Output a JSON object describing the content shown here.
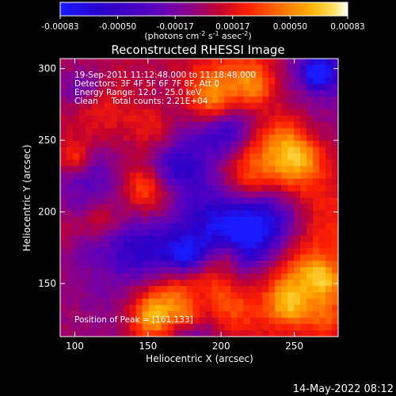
{
  "colorbar": {
    "ticks": [
      "-0.00083",
      "-0.00050",
      "-0.00017",
      "0.00017",
      "0.00050",
      "0.00083"
    ],
    "unit_parts": [
      "(photons cm",
      "-2",
      " s",
      "-1",
      " asec",
      "-2",
      ")"
    ],
    "colors": [
      "#1a1aff",
      "#2a00c8",
      "#5a00c0",
      "#8a008a",
      "#c00030",
      "#ff2000",
      "#ff6a00",
      "#ffb000",
      "#ffe060",
      "#ffffff"
    ]
  },
  "plot": {
    "title": "Reconstructed RHESSI Image",
    "xlabel": "Heliocentric X (arcsec)",
    "ylabel": "Heliocentric Y (arcsec)",
    "x_ticks": [
      "100",
      "150",
      "200",
      "250"
    ],
    "y_ticks": [
      "300",
      "250",
      "200",
      "150"
    ],
    "xlim": [
      90,
      280
    ],
    "ylim": [
      113,
      307
    ]
  },
  "annotations": {
    "time": "19-Sep-2011 11:12:48.000 to 11:18:48.000",
    "detectors": "Detectors: 3F 4F 5F 6F 7F 8F, Att 0",
    "energy": "Energy Range: 12.0 - 25.0 keV",
    "clean": "Clean     Total counts: 2.21E+04",
    "peak": "Position of Peak = [161,133]"
  },
  "footer": {
    "date": "14-May-2022 08:12"
  }
}
